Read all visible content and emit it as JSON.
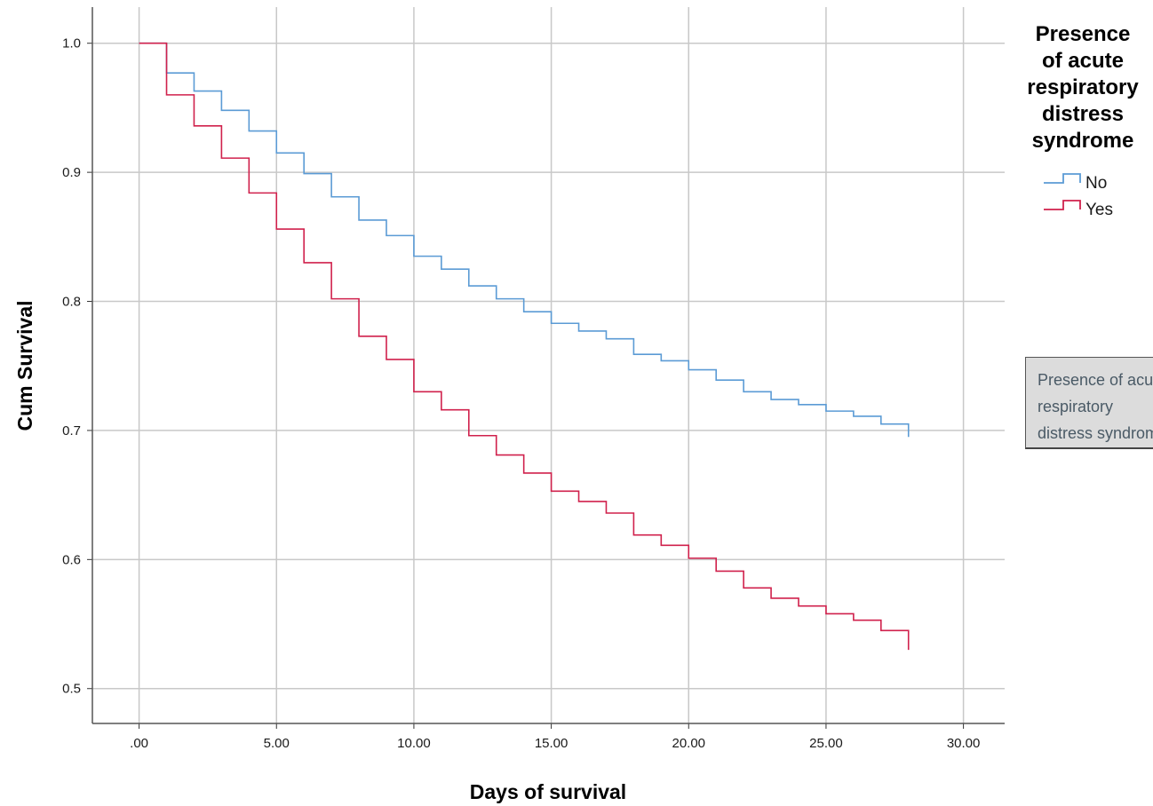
{
  "chart_data": {
    "type": "line",
    "step": true,
    "xlabel": "Days of survival",
    "ylabel": "Cum Survival",
    "xlim": [
      -1.7,
      31.5
    ],
    "ylim": [
      0.473,
      1.028
    ],
    "xticks": [
      0,
      5,
      10,
      15,
      20,
      25,
      30
    ],
    "xtick_labels": [
      ".00",
      "5.00",
      "10.00",
      "15.00",
      "20.00",
      "25.00",
      "30.00"
    ],
    "yticks": [
      0.5,
      0.6,
      0.7,
      0.8,
      0.9,
      1.0
    ],
    "ytick_labels": [
      "0.5",
      "0.6",
      "0.7",
      "0.8",
      "0.9",
      "1.0"
    ],
    "grid": true,
    "legend_title": "Presence of acute respiratory distress syndrome",
    "legend_position": "top-right",
    "series": [
      {
        "name": "No",
        "color": "#5b9bd5",
        "x": [
          0,
          1,
          2,
          3,
          4,
          5,
          6,
          7,
          8,
          9,
          10,
          11,
          12,
          13,
          14,
          15,
          16,
          17,
          18,
          19,
          20,
          21,
          22,
          23,
          24,
          25,
          26,
          27,
          28
        ],
        "y": [
          1.0,
          0.977,
          0.963,
          0.948,
          0.932,
          0.915,
          0.899,
          0.881,
          0.863,
          0.851,
          0.835,
          0.825,
          0.812,
          0.802,
          0.792,
          0.783,
          0.777,
          0.771,
          0.759,
          0.754,
          0.747,
          0.739,
          0.73,
          0.724,
          0.72,
          0.715,
          0.711,
          0.705,
          0.695
        ]
      },
      {
        "name": "Yes",
        "color": "#d0214c",
        "x": [
          0,
          1,
          2,
          3,
          4,
          5,
          6,
          7,
          8,
          9,
          10,
          11,
          12,
          13,
          14,
          15,
          16,
          17,
          18,
          19,
          20,
          21,
          22,
          23,
          24,
          25,
          26,
          27,
          28
        ],
        "y": [
          1.0,
          0.96,
          0.936,
          0.911,
          0.884,
          0.856,
          0.83,
          0.802,
          0.773,
          0.755,
          0.73,
          0.716,
          0.696,
          0.681,
          0.667,
          0.653,
          0.645,
          0.636,
          0.619,
          0.611,
          0.601,
          0.591,
          0.578,
          0.57,
          0.564,
          0.558,
          0.553,
          0.545,
          0.53
        ]
      }
    ]
  },
  "tooltip": {
    "text": "Presence of acute respiratory distress syndrome"
  }
}
